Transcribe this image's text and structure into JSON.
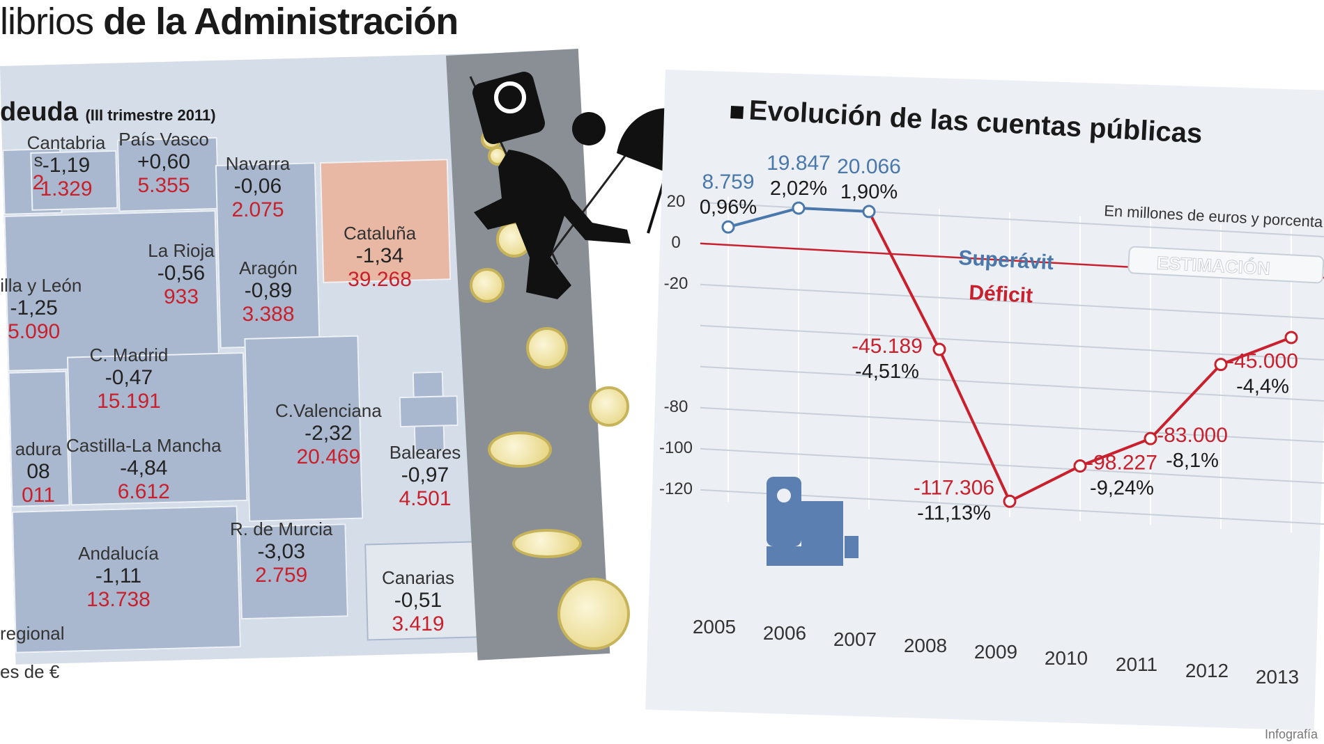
{
  "headline": {
    "light": "librios",
    "bold": "de la Administración"
  },
  "map": {
    "title": "deuda",
    "period": "(III trimestre 2011)",
    "footer_1": "regional",
    "footer_2": "es de €",
    "regions": [
      {
        "name": "s",
        "pct": "",
        "value": "2"
      },
      {
        "name": "Cantabria",
        "pct": "-1,19",
        "value": "1.329"
      },
      {
        "name": "País Vasco",
        "pct": "+0,60",
        "value": "5.355"
      },
      {
        "name": "Navarra",
        "pct": "-0,06",
        "value": "2.075"
      },
      {
        "name": "Cataluña",
        "pct": "-1,34",
        "value": "39.268"
      },
      {
        "name": "stilla y León",
        "pct": "-1,25",
        "value": "5.090"
      },
      {
        "name": "La Rioja",
        "pct": "-0,56",
        "value": "933"
      },
      {
        "name": "Aragón",
        "pct": "-0,89",
        "value": "3.388"
      },
      {
        "name": "C. Madrid",
        "pct": "-0,47",
        "value": "15.191"
      },
      {
        "name": "C.Valenciana",
        "pct": "-2,32",
        "value": "20.469"
      },
      {
        "name": "adura",
        "pct": "08",
        "value": "011"
      },
      {
        "name": "Castilla-La Mancha",
        "pct": "-4,84",
        "value": "6.612"
      },
      {
        "name": "Baleares",
        "pct": "-0,97",
        "value": "4.501"
      },
      {
        "name": "Andalucía",
        "pct": "-1,11",
        "value": "13.738"
      },
      {
        "name": "R. de Murcia",
        "pct": "-3,03",
        "value": "2.759"
      },
      {
        "name": "Canarias",
        "pct": "-0,51",
        "value": "3.419"
      }
    ]
  },
  "chart": {
    "title": "Evolución de las cuentas públicas",
    "subtitle": "En millones de euros y porcenta",
    "estimation_label": "ESTIMACIÓN",
    "superavit_label": "Superávit",
    "deficit_label": "Déficit",
    "credit": "Infografía"
  },
  "colors": {
    "surplus": "#4a78aa",
    "deficit": "#c8202c",
    "highlight": "#e8b8a4"
  },
  "chart_data": {
    "type": "line",
    "title": "Evolución de las cuentas públicas",
    "subtitle": "En millones de euros y porcenta",
    "categories": [
      "2005",
      "2006",
      "2007",
      "2008",
      "2009",
      "2010",
      "2011",
      "2012",
      "2013"
    ],
    "yticks": [
      "20",
      "0",
      "-20",
      "-80",
      "-100",
      "-120"
    ],
    "ylim": [
      -120,
      20
    ],
    "points": [
      {
        "x": "2005",
        "y": 8759,
        "label": "8.759",
        "pct": "0,96%",
        "sign": "surplus"
      },
      {
        "x": "2006",
        "y": 19847,
        "label": "19.847",
        "pct": "2,02%",
        "sign": "surplus"
      },
      {
        "x": "2007",
        "y": 20066,
        "label": "20.066",
        "pct": "1,90%",
        "sign": "surplus"
      },
      {
        "x": "2008",
        "y": -45189,
        "label": "-45.189",
        "pct": "-4,51%",
        "sign": "deficit"
      },
      {
        "x": "2009",
        "y": -117306,
        "label": "-117.306",
        "pct": "-11,13%",
        "sign": "deficit"
      },
      {
        "x": "2010",
        "y": -98227,
        "label": "-98.227",
        "pct": "-9,24%",
        "sign": "deficit"
      },
      {
        "x": "2011",
        "y": -83000,
        "label": "-83.000",
        "pct": "-8,1%",
        "sign": "deficit"
      },
      {
        "x": "2012",
        "y": -45000,
        "label": "-45.000",
        "pct": "-4,4%",
        "sign": "deficit"
      },
      {
        "x": "2013",
        "y": -30000,
        "label": "",
        "pct": "",
        "sign": "deficit"
      }
    ],
    "estimation_from": "2011",
    "grid": true
  }
}
